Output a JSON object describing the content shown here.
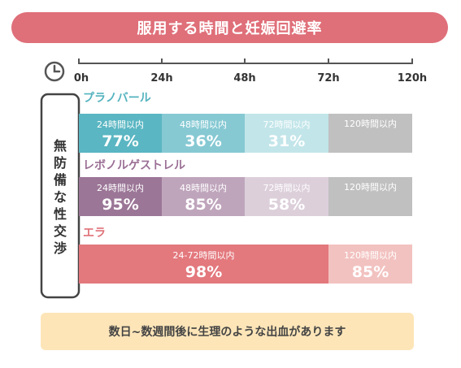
{
  "title": "服用する時間と妊娠回避率",
  "footer_note": "数日~数週間後に生理のような出血があります",
  "side_label": "無防備な性交渉",
  "chart_data": {
    "type": "bar",
    "orientation": "horizontal-stacked",
    "x_ticks": [
      "0h",
      "24h",
      "48h",
      "72h",
      "120h"
    ],
    "x_tick_hours": [
      0,
      24,
      48,
      72,
      120
    ],
    "x_scale": "piecewise (equal spacing per tick)",
    "series": [
      {
        "name": "プラノバール",
        "segments": [
          {
            "from": 0,
            "to": 24,
            "label": "24時間以内",
            "value": 77,
            "display": "77%",
            "color": "#5ab6c2",
            "text_color": "#ffffff"
          },
          {
            "from": 24,
            "to": 48,
            "label": "48時間以内",
            "value": 36,
            "display": "36%",
            "color": "#86c9d3",
            "text_color": "#ffffff"
          },
          {
            "from": 48,
            "to": 72,
            "label": "72時間以内",
            "value": 31,
            "display": "31%",
            "color": "#c2e5e9",
            "text_color": "#ffffff"
          },
          {
            "from": 72,
            "to": 120,
            "label": "120時間以内",
            "value": null,
            "display": "",
            "color": "#c0c0c0",
            "text_color": "#ffffff"
          }
        ]
      },
      {
        "name": "レボノルゲストレル",
        "segments": [
          {
            "from": 0,
            "to": 24,
            "label": "24時間以内",
            "value": 95,
            "display": "95%",
            "color": "#9b7697",
            "text_color": "#ffffff"
          },
          {
            "from": 24,
            "to": 48,
            "label": "48時間以内",
            "value": 85,
            "display": "85%",
            "color": "#bfa5bc",
            "text_color": "#ffffff"
          },
          {
            "from": 48,
            "to": 72,
            "label": "72時間以内",
            "value": 58,
            "display": "58%",
            "color": "#dccfda",
            "text_color": "#ffffff"
          },
          {
            "from": 72,
            "to": 120,
            "label": "120時間以内",
            "value": null,
            "display": "",
            "color": "#c0c0c0",
            "text_color": "#ffffff"
          }
        ]
      },
      {
        "name": "エラ",
        "segments": [
          {
            "from": 0,
            "to": 72,
            "label": "24-72時間以内",
            "value": 98,
            "display": "98%",
            "color": "#e3787d",
            "text_color": "#ffffff"
          },
          {
            "from": 72,
            "to": 120,
            "label": "120時間以内",
            "value": 85,
            "display": "85%",
            "color": "#f2c2c0",
            "text_color": "#ffffff"
          }
        ]
      }
    ],
    "series_label_colors": [
      "#55b3bf",
      "#9b6f95",
      "#e0737a"
    ],
    "axis_color": "#555555",
    "icon": "clock-icon"
  }
}
